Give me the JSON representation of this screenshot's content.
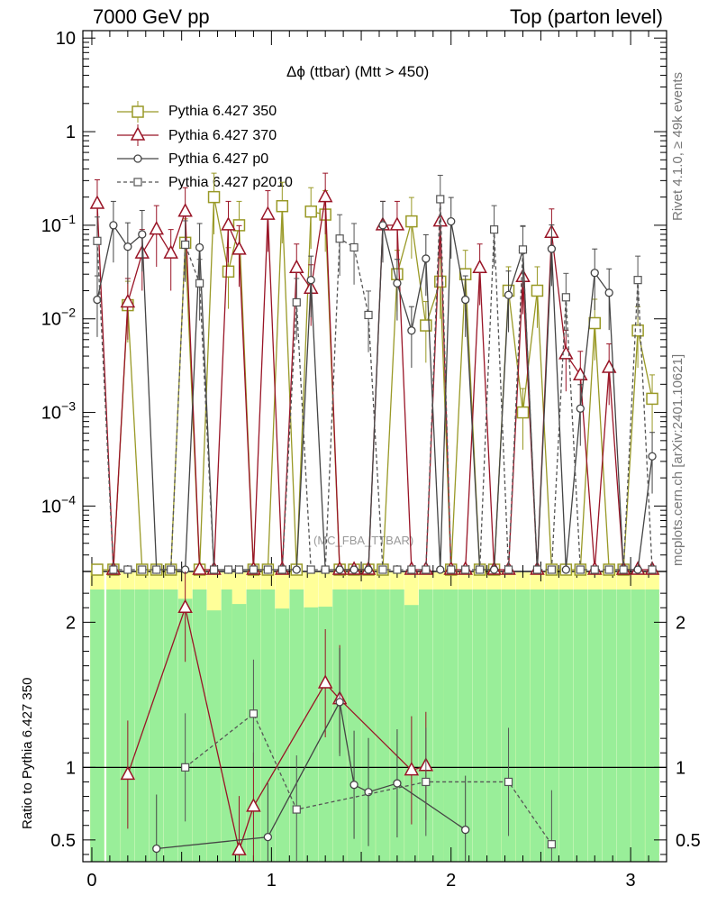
{
  "header": {
    "left": "7000 GeV pp",
    "right": "Top (parton level)"
  },
  "side_text": {
    "rivet": "Rivet 4.1.0, ≥ 49k events",
    "mcplots": "mcplots.cern.ch [arXiv:2401.10621]"
  },
  "analysis_id": "(MC_FBA_TTBAR)",
  "chart_data": {
    "type": "line",
    "title": "Δϕ (ttbar) (Mtt > 450)",
    "xlabel": "",
    "ylabel": "",
    "ratio_ylabel": "Ratio to Pythia 6.427 350",
    "xlim": [
      -0.05,
      3.2
    ],
    "ylim": [
      2e-05,
      12
    ],
    "ratio_ylim": [
      0.35,
      2.35
    ],
    "x_ticks": [
      "0",
      "1",
      "2",
      "3"
    ],
    "y_ticks": [
      "10^-4",
      "10^-3",
      "10^-2",
      "10^-1",
      "1",
      "10"
    ],
    "ratio_y_ticks": [
      "0.5",
      "1",
      "2"
    ],
    "x": [
      0.03,
      0.12,
      0.2,
      0.28,
      0.36,
      0.44,
      0.52,
      0.6,
      0.68,
      0.76,
      0.82,
      0.9,
      0.98,
      1.06,
      1.14,
      1.22,
      1.3,
      1.38,
      1.46,
      1.54,
      1.62,
      1.7,
      1.78,
      1.86,
      1.94,
      2.0,
      2.08,
      2.16,
      2.24,
      2.32,
      2.4,
      2.48,
      2.56,
      2.64,
      2.72,
      2.8,
      2.88,
      2.96,
      3.04,
      3.12
    ],
    "series": [
      {
        "name": "Pythia 6.427 350",
        "color": "#999926",
        "marker": "square",
        "values": [
          null,
          null,
          0.014,
          null,
          null,
          null,
          0.065,
          null,
          0.2,
          0.032,
          0.1,
          null,
          null,
          0.16,
          null,
          0.14,
          0.13,
          null,
          null,
          null,
          null,
          0.03,
          0.11,
          0.0085,
          0.025,
          null,
          0.03,
          null,
          null,
          0.02,
          0.001,
          0.02,
          null,
          null,
          null,
          0.009,
          null,
          null,
          0.0075,
          0.0014
        ]
      },
      {
        "name": "Pythia 6.427 370",
        "color": "#991426",
        "marker": "triangle",
        "values": [
          0.17,
          null,
          0.015,
          0.05,
          0.09,
          0.05,
          0.14,
          null,
          null,
          0.1,
          0.055,
          null,
          0.13,
          null,
          0.035,
          0.021,
          0.2,
          null,
          null,
          null,
          0.1,
          0.1,
          null,
          null,
          0.11,
          null,
          null,
          0.035,
          null,
          null,
          0.028,
          null,
          0.083,
          0.0042,
          0.0025,
          null,
          0.003,
          null,
          null,
          null
        ]
      },
      {
        "name": "Pythia 6.427 p0",
        "color": "#444444",
        "marker": "circle",
        "values": [
          0.016,
          0.1,
          0.059,
          0.08,
          null,
          null,
          null,
          0.058,
          null,
          null,
          null,
          null,
          null,
          null,
          null,
          0.026,
          null,
          null,
          null,
          null,
          0.1,
          0.024,
          0.0075,
          0.044,
          null,
          0.11,
          0.016,
          null,
          null,
          0.018,
          0.054,
          null,
          0.056,
          null,
          0.0011,
          0.031,
          0.019,
          null,
          null,
          0.00034
        ]
      },
      {
        "name": "Pythia 6.427 p2010",
        "color": "#555555",
        "marker": "open-square",
        "dashed": true,
        "values": [
          0.068,
          null,
          null,
          null,
          null,
          null,
          0.062,
          0.024,
          null,
          null,
          null,
          null,
          null,
          null,
          0.015,
          null,
          null,
          0.072,
          0.058,
          0.011,
          null,
          null,
          null,
          null,
          0.19,
          null,
          null,
          null,
          0.09,
          null,
          0.055,
          null,
          null,
          0.017,
          null,
          null,
          null,
          null,
          0.026,
          null
        ]
      }
    ],
    "ratio_series": [
      {
        "name": "Pythia 6.427 370",
        "points": [
          [
            0.2,
            0.95
          ],
          [
            0.52,
            2.1
          ],
          [
            0.82,
            0.43
          ],
          [
            0.9,
            0.73
          ],
          [
            1.3,
            1.58
          ],
          [
            1.38,
            1.47
          ],
          [
            1.78,
            0.98
          ],
          [
            1.86,
            1.01
          ]
        ]
      },
      {
        "name": "Pythia 6.427 p0",
        "points": [
          [
            0.36,
            0.44
          ],
          [
            0.98,
            0.52
          ],
          [
            1.38,
            1.45
          ],
          [
            1.46,
            0.88
          ],
          [
            1.54,
            0.83
          ],
          [
            1.7,
            0.89
          ],
          [
            2.08,
            0.57
          ]
        ]
      },
      {
        "name": "Pythia 6.427 p2010",
        "points": [
          [
            0.52,
            1.0
          ],
          [
            0.9,
            1.37
          ],
          [
            1.14,
            0.71
          ],
          [
            1.86,
            0.9
          ],
          [
            2.32,
            0.9
          ],
          [
            2.56,
            0.47
          ]
        ]
      }
    ]
  }
}
